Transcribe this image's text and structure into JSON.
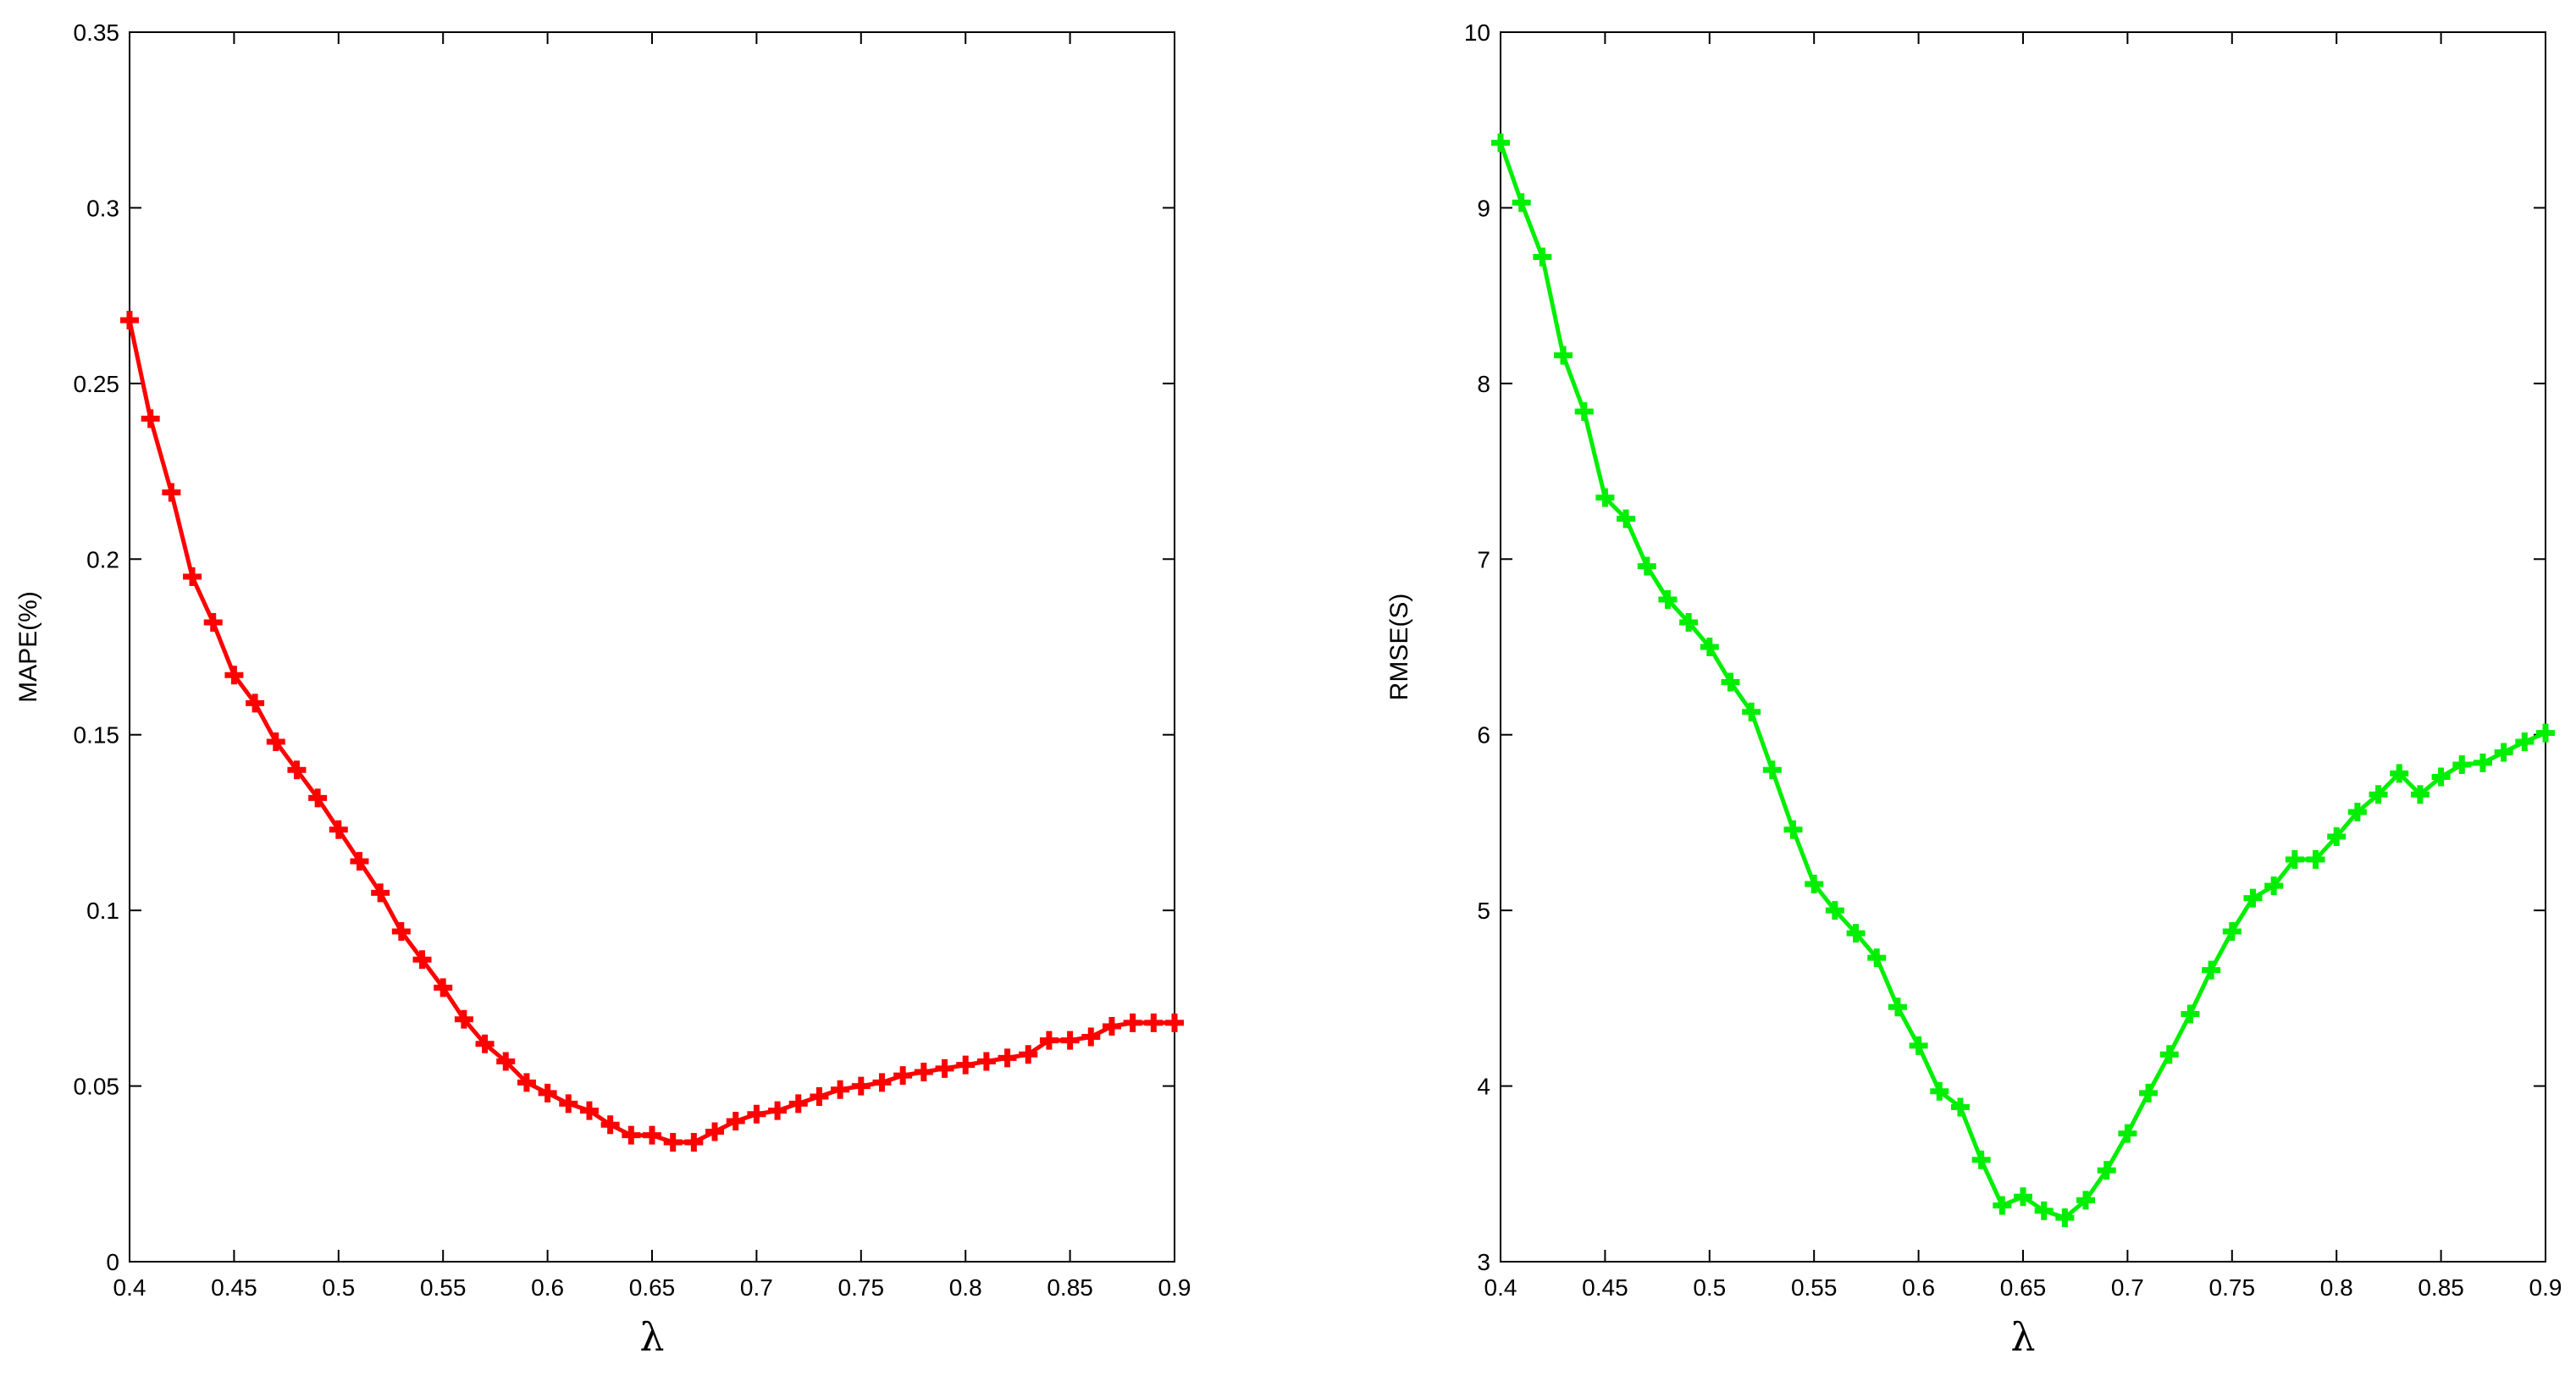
{
  "chart_data": [
    {
      "type": "line",
      "xlabel": "λ",
      "ylabel": "MAPE(%)",
      "xlim": [
        0.4,
        0.9
      ],
      "ylim": [
        0,
        0.35
      ],
      "grid": false,
      "color": "#ff0000",
      "marker": "plus",
      "x_ticks": [
        "0.4",
        "0.45",
        "0.5",
        "0.55",
        "0.6",
        "0.65",
        "0.7",
        "0.75",
        "0.8",
        "0.85",
        "0.9"
      ],
      "y_ticks": [
        "0",
        "0.05",
        "0.1",
        "0.15",
        "0.2",
        "0.25",
        "0.3",
        "0.35"
      ],
      "x": [
        0.4,
        0.41,
        0.42,
        0.43,
        0.44,
        0.45,
        0.46,
        0.47,
        0.48,
        0.49,
        0.5,
        0.51,
        0.52,
        0.53,
        0.54,
        0.55,
        0.56,
        0.57,
        0.58,
        0.59,
        0.6,
        0.61,
        0.62,
        0.63,
        0.64,
        0.65,
        0.66,
        0.67,
        0.68,
        0.69,
        0.7,
        0.71,
        0.72,
        0.73,
        0.74,
        0.75,
        0.76,
        0.77,
        0.78,
        0.79,
        0.8,
        0.81,
        0.82,
        0.83,
        0.84,
        0.85,
        0.86,
        0.87,
        0.88,
        0.89,
        0.9
      ],
      "values": [
        0.268,
        0.24,
        0.219,
        0.195,
        0.182,
        0.167,
        0.159,
        0.148,
        0.14,
        0.132,
        0.123,
        0.114,
        0.105,
        0.094,
        0.086,
        0.078,
        0.069,
        0.062,
        0.057,
        0.051,
        0.048,
        0.045,
        0.043,
        0.039,
        0.036,
        0.036,
        0.034,
        0.034,
        0.037,
        0.04,
        0.042,
        0.043,
        0.045,
        0.047,
        0.049,
        0.05,
        0.051,
        0.053,
        0.054,
        0.055,
        0.056,
        0.057,
        0.058,
        0.059,
        0.063,
        0.063,
        0.064,
        0.067,
        0.068,
        0.068,
        0.068
      ]
    },
    {
      "type": "line",
      "xlabel": "λ",
      "ylabel": "RMSE(S)",
      "xlim": [
        0.4,
        0.9
      ],
      "ylim": [
        3,
        10
      ],
      "grid": false,
      "color": "#00ee00",
      "marker": "plus",
      "x_ticks": [
        "0.4",
        "0.45",
        "0.5",
        "0.55",
        "0.6",
        "0.65",
        "0.7",
        "0.75",
        "0.8",
        "0.85",
        "0.9"
      ],
      "y_ticks": [
        "3",
        "4",
        "5",
        "6",
        "7",
        "8",
        "9",
        "10"
      ],
      "x": [
        0.4,
        0.41,
        0.42,
        0.43,
        0.44,
        0.45,
        0.46,
        0.47,
        0.48,
        0.49,
        0.5,
        0.51,
        0.52,
        0.53,
        0.54,
        0.55,
        0.56,
        0.57,
        0.58,
        0.59,
        0.6,
        0.61,
        0.62,
        0.63,
        0.64,
        0.65,
        0.66,
        0.67,
        0.68,
        0.69,
        0.7,
        0.71,
        0.72,
        0.73,
        0.74,
        0.75,
        0.76,
        0.77,
        0.78,
        0.79,
        0.8,
        0.81,
        0.82,
        0.83,
        0.84,
        0.85,
        0.86,
        0.87,
        0.88,
        0.89,
        0.9
      ],
      "values": [
        9.37,
        9.03,
        8.72,
        8.16,
        7.84,
        7.35,
        7.23,
        6.96,
        6.77,
        6.64,
        6.5,
        6.3,
        6.13,
        5.8,
        5.46,
        5.15,
        5.0,
        4.87,
        4.73,
        4.45,
        4.23,
        3.97,
        3.88,
        3.58,
        3.32,
        3.37,
        3.29,
        3.25,
        3.35,
        3.52,
        3.73,
        3.96,
        4.18,
        4.41,
        4.66,
        4.88,
        5.07,
        5.14,
        5.29,
        5.29,
        5.42,
        5.56,
        5.66,
        5.78,
        5.66,
        5.76,
        5.83,
        5.84,
        5.9,
        5.96,
        6.01
      ]
    }
  ]
}
